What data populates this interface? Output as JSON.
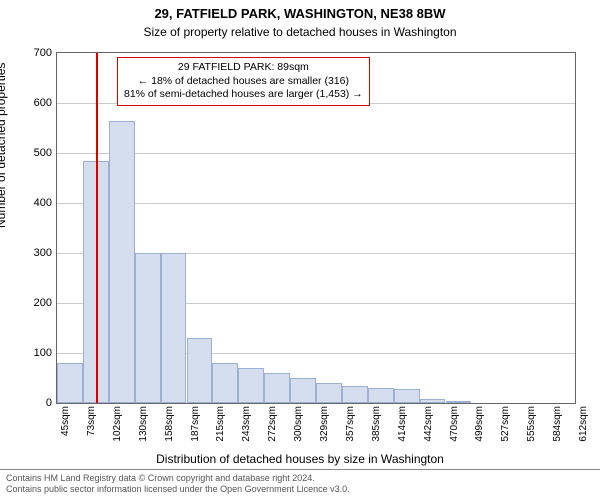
{
  "title": "29, FATFIELD PARK, WASHINGTON, NE38 8BW",
  "subtitle": "Size of property relative to detached houses in Washington",
  "chart": {
    "type": "histogram",
    "ylabel": "Number of detached properties",
    "xlabel": "Distribution of detached houses by size in Washington",
    "ylim_max": 700,
    "ytick_step": 100,
    "yticks": [
      0,
      100,
      200,
      300,
      400,
      500,
      600,
      700
    ],
    "xticks": [
      "45sqm",
      "73sqm",
      "102sqm",
      "130sqm",
      "158sqm",
      "187sqm",
      "215sqm",
      "243sqm",
      "272sqm",
      "300sqm",
      "329sqm",
      "357sqm",
      "385sqm",
      "414sqm",
      "442sqm",
      "470sqm",
      "499sqm",
      "527sqm",
      "555sqm",
      "584sqm",
      "612sqm"
    ],
    "bar_values": [
      80,
      485,
      565,
      300,
      300,
      130,
      80,
      70,
      60,
      50,
      40,
      35,
      30,
      28,
      8,
      5,
      0,
      0,
      0,
      0
    ],
    "bar_fill": "#d5deef",
    "bar_stroke": "#9db0d3",
    "marker_color": "#d90000",
    "marker_bin_index": 1,
    "marker_fraction_in_bin": 0.55,
    "grid_color": "#cccccc",
    "border_color": "#666666",
    "background_color": "#ffffff"
  },
  "annotation": {
    "line1": "29 FATFIELD PARK: 89sqm",
    "line2": "← 18% of detached houses are smaller (316)",
    "line3": "81% of semi-detached houses are larger (1,453) →"
  },
  "footer": {
    "line1": "Contains HM Land Registry data © Crown copyright and database right 2024.",
    "line2": "Contains public sector information licensed under the Open Government Licence v3.0."
  }
}
